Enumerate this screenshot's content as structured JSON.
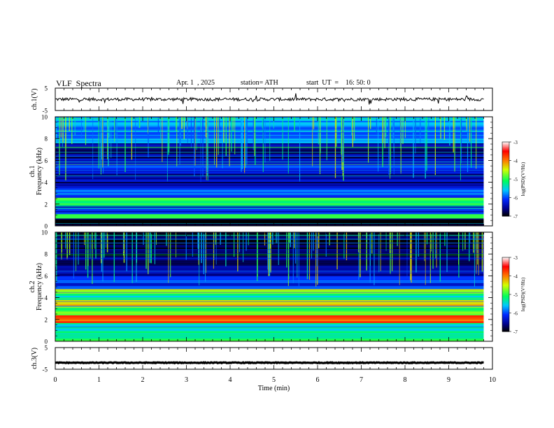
{
  "header": {
    "title": "VLF  Spectra",
    "date": "Apr. 1  , 2025",
    "station": "station= ATH",
    "start": "start  UT  =    16: 50: 0"
  },
  "colorbar": {
    "label": "log(PSD)(V²/Hz)",
    "ticks": [
      "-3",
      "-4",
      "-5",
      "-6",
      "-7"
    ],
    "range": [
      -7,
      -3
    ]
  },
  "chart_data": [
    {
      "type": "line",
      "panel": "ch1-waveform",
      "ylabel": "ch.1(V)",
      "ylim": [
        -5,
        5
      ],
      "yticks": [
        "5",
        "-5"
      ],
      "x_range_min": [
        0,
        9.8
      ],
      "level": 0,
      "color": "#000000"
    },
    {
      "type": "heatmap",
      "panel": "ch1-spectrogram",
      "ylabel_channel": "ch.1",
      "ylabel": "Frequency  (kHz)",
      "ylim": [
        0,
        10
      ],
      "yticks": [
        "0",
        "2",
        "4",
        "6",
        "8",
        "10"
      ],
      "x_range_min": [
        0,
        9.8
      ],
      "bands_khz": [
        {
          "f": [
            0.0,
            0.3
          ],
          "level": -7
        },
        {
          "f": [
            0.3,
            0.7
          ],
          "level": -6.8
        },
        {
          "f": [
            0.7,
            1.1
          ],
          "level": -4.8
        },
        {
          "f": [
            1.1,
            1.8
          ],
          "level": -6.3
        },
        {
          "f": [
            1.8,
            2.6
          ],
          "level": -5.1
        },
        {
          "f": [
            2.6,
            3.4
          ],
          "level": -6.0
        },
        {
          "f": [
            3.4,
            4.8
          ],
          "level": -6.5
        },
        {
          "f": [
            4.8,
            6.2
          ],
          "level": -6.2
        },
        {
          "f": [
            6.2,
            7.6
          ],
          "level": -6.6
        },
        {
          "f": [
            7.6,
            10.0
          ],
          "level": -5.8
        }
      ]
    },
    {
      "type": "heatmap",
      "panel": "ch2-spectrogram",
      "ylabel_channel": "ch.2",
      "ylabel": "Frequency  (kHz)",
      "ylim": [
        0,
        10
      ],
      "yticks": [
        "0",
        "2",
        "4",
        "6",
        "8",
        "10"
      ],
      "x_range_min": [
        0,
        9.8
      ],
      "bands_khz": [
        {
          "f": [
            0.0,
            0.5
          ],
          "level": -5.2
        },
        {
          "f": [
            0.5,
            1.7
          ],
          "level": -5.4
        },
        {
          "f": [
            1.7,
            2.4
          ],
          "level": -3.9
        },
        {
          "f": [
            2.4,
            3.2
          ],
          "level": -4.9
        },
        {
          "f": [
            3.2,
            3.8
          ],
          "level": -4.3
        },
        {
          "f": [
            3.8,
            4.4
          ],
          "level": -5.4
        },
        {
          "f": [
            4.4,
            4.8
          ],
          "level": -4.6
        },
        {
          "f": [
            4.8,
            6.0
          ],
          "level": -6.1
        },
        {
          "f": [
            6.0,
            7.8
          ],
          "level": -6.6
        },
        {
          "f": [
            7.8,
            10.0
          ],
          "level": -6.9
        }
      ]
    },
    {
      "type": "line",
      "panel": "ch3-waveform",
      "ylabel": "ch.3(V)",
      "ylim": [
        -5,
        5
      ],
      "yticks": [
        "5",
        "-5"
      ],
      "x_range_min": [
        0,
        9.8
      ],
      "level": -2,
      "color": "#000000"
    }
  ],
  "xaxis": {
    "label": "Time  (min)",
    "ticks": [
      0,
      1,
      2,
      3,
      4,
      5,
      6,
      7,
      8,
      9,
      10
    ],
    "range": [
      0,
      10
    ]
  },
  "colors": {
    "scale": [
      "#000000",
      "#0000ff",
      "#00c8ff",
      "#00ff66",
      "#ffff00",
      "#ff0000",
      "#ffffff"
    ]
  }
}
